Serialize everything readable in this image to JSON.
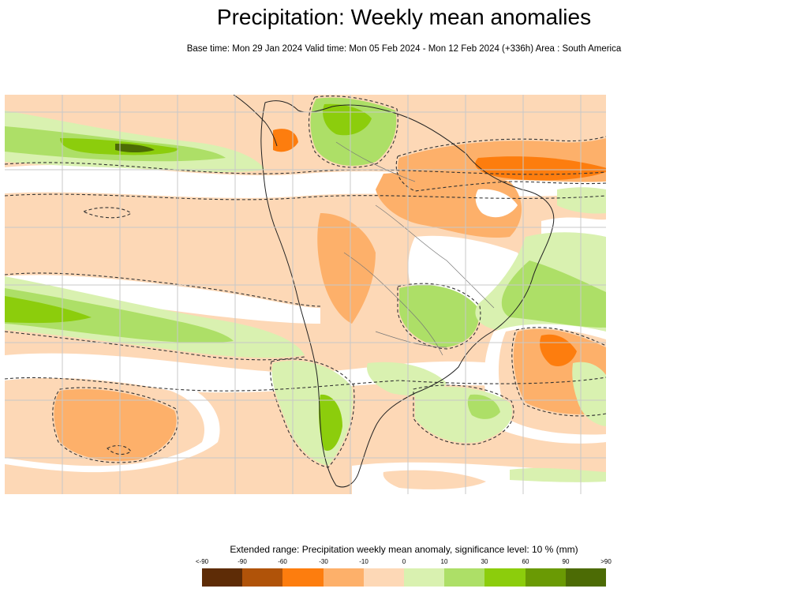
{
  "title": "Precipitation: Weekly mean anomalies",
  "subtitle": "Base time: Mon 29 Jan 2024 Valid time: Mon 05 Feb 2024 - Mon 12 Feb 2024 (+336h) Area : South America",
  "legend": {
    "title": "Extended range: Precipitation weekly mean anomaly, significance level: 10 % (mm)",
    "ticks": [
      "<-90",
      "-90",
      "-60",
      "-30",
      "-10",
      "0",
      "10",
      "30",
      "60",
      "90",
      ">90"
    ],
    "colors": [
      "#5e2c06",
      "#b05309",
      "#fd7d0e",
      "#fdb06a",
      "#fdd8b6",
      "#d9f1b0",
      "#addf67",
      "#8ccd0c",
      "#6a9a04",
      "#4c6b05"
    ]
  },
  "map": {
    "area": "South America",
    "grid_step_deg": 10
  }
}
